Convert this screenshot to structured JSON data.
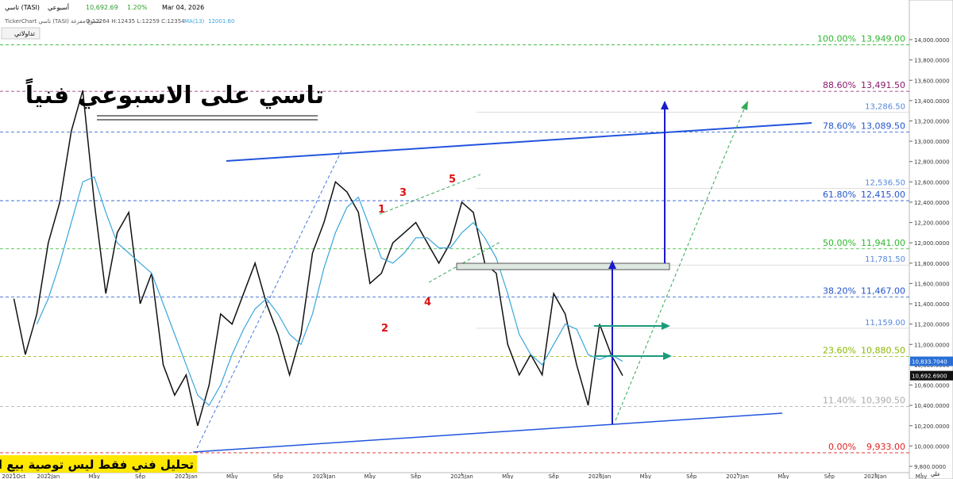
{
  "header": {
    "symbol": "تاسي (TASI)",
    "period": "أسبوعي",
    "last": "10,692.69",
    "change": "1.20%",
    "date": "Mar 04, 2026",
    "source": "TickerChart تاسي (TASI) شموع مفرغة",
    "ohlc": "O:12264 H:12435 L:12259 C:12354",
    "ma": "MA(13)",
    "ma_value": "12001.60",
    "button": "تداولاتي"
  },
  "chart_data": {
    "type": "line",
    "title": "تاسي على الاسبوعي فنياً",
    "footer": "تحليل فني فقط ليس توصية بيع او شراء",
    "signature": "علي",
    "annotations": [
      "1",
      "2",
      "3",
      "4",
      "5"
    ],
    "x": [
      "2021-10",
      "2021-11",
      "2021-12",
      "2022-01",
      "2022-02",
      "2022-03",
      "2022-04",
      "2022-05",
      "2022-06",
      "2022-07",
      "2022-08",
      "2022-09",
      "2022-10",
      "2022-11",
      "2022-12",
      "2023-01",
      "2023-02",
      "2023-03",
      "2023-04",
      "2023-05",
      "2023-06",
      "2023-07",
      "2023-08",
      "2023-09",
      "2023-10",
      "2023-11",
      "2023-12",
      "2024-01",
      "2024-02",
      "2024-03",
      "2024-04",
      "2024-05",
      "2024-06",
      "2024-07",
      "2024-08",
      "2024-09",
      "2024-10",
      "2024-11",
      "2024-12",
      "2025-01",
      "2025-02",
      "2025-03",
      "2025-04",
      "2025-05",
      "2025-06",
      "2025-07",
      "2025-08",
      "2025-09",
      "2025-10",
      "2025-11",
      "2025-12",
      "2026-01",
      "2026-02",
      "2026-03"
    ],
    "series": [
      {
        "name": "تاسي (TASI)",
        "color": "#111111",
        "values": [
          11450,
          10900,
          11300,
          12000,
          12400,
          13100,
          13500,
          12400,
          11500,
          12100,
          12300,
          11400,
          11700,
          10800,
          10500,
          10700,
          10200,
          10600,
          11300,
          11200,
          11500,
          11800,
          11400,
          11100,
          10700,
          11100,
          11900,
          12200,
          12600,
          12500,
          12300,
          11600,
          11700,
          12000,
          12100,
          12200,
          12000,
          11800,
          12000,
          12400,
          12300,
          11800,
          11700,
          11000,
          10700,
          10900,
          10700,
          11500,
          11300,
          10800,
          10400,
          11200,
          10900,
          10693
        ]
      },
      {
        "name": "MA(13)",
        "color": "#3aa6dd",
        "values": [
          null,
          null,
          11200,
          11450,
          11800,
          12200,
          12600,
          12650,
          12300,
          12000,
          11900,
          11800,
          11700,
          11400,
          11100,
          10800,
          10500,
          10400,
          10600,
          10900,
          11150,
          11350,
          11450,
          11300,
          11100,
          11000,
          11300,
          11750,
          12100,
          12350,
          12450,
          12150,
          11850,
          11800,
          11900,
          12050,
          12050,
          11950,
          11950,
          12100,
          12200,
          12050,
          11850,
          11500,
          11100,
          10900,
          10800,
          11000,
          11200,
          11150,
          10900,
          10850,
          10900,
          10833
        ]
      }
    ],
    "xlim": [
      "2021-09",
      "2028-06"
    ],
    "xticks": [
      {
        "value": "2021-10",
        "label": "2021Oct"
      },
      {
        "value": "2022-01",
        "label": "2022Jan"
      },
      {
        "value": "2022-05",
        "label": "May"
      },
      {
        "value": "2022-09",
        "label": "Sep"
      },
      {
        "value": "2023-01",
        "label": "2023Jan"
      },
      {
        "value": "2023-05",
        "label": "May"
      },
      {
        "value": "2023-09",
        "label": "Sep"
      },
      {
        "value": "2024-01",
        "label": "2024Jan"
      },
      {
        "value": "2024-05",
        "label": "May"
      },
      {
        "value": "2024-09",
        "label": "Sep"
      },
      {
        "value": "2025-01",
        "label": "2025Jan"
      },
      {
        "value": "2025-05",
        "label": "May"
      },
      {
        "value": "2025-09",
        "label": "Sep"
      },
      {
        "value": "2026-01",
        "label": "2026Jan"
      },
      {
        "value": "2026-05",
        "label": "May"
      },
      {
        "value": "2026-09",
        "label": "Sep"
      },
      {
        "value": "2027-01",
        "label": "2027Jan"
      },
      {
        "value": "2027-05",
        "label": "May"
      },
      {
        "value": "2027-09",
        "label": "Sep"
      },
      {
        "value": "2028-01",
        "label": "2028Jan"
      },
      {
        "value": "2028-05",
        "label": "May"
      }
    ],
    "ylim": [
      9750,
      14150
    ],
    "yticks": [
      {
        "value": 9800,
        "label": "9,800.0000"
      },
      {
        "value": 10000,
        "label": "10,000.0000"
      },
      {
        "value": 10200,
        "label": "10,200.0000"
      },
      {
        "value": 10400,
        "label": "10,400.0000"
      },
      {
        "value": 10600,
        "label": "10,600.0000"
      },
      {
        "value": 10800,
        "label": "10,800.0000"
      },
      {
        "value": 11000,
        "label": "11,000.0000"
      },
      {
        "value": 11200,
        "label": "11,200.0000"
      },
      {
        "value": 11400,
        "label": "11,400.0000"
      },
      {
        "value": 11600,
        "label": "11,600.0000"
      },
      {
        "value": 11800,
        "label": "11,800.0000"
      },
      {
        "value": 12000,
        "label": "12,000.0000"
      },
      {
        "value": 12200,
        "label": "12,200.0000"
      },
      {
        "value": 12400,
        "label": "12,400.0000"
      },
      {
        "value": 12600,
        "label": "12,600.0000"
      },
      {
        "value": 12800,
        "label": "12,800.0000"
      },
      {
        "value": 13000,
        "label": "13,000.0000"
      },
      {
        "value": 13200,
        "label": "13,200.0000"
      },
      {
        "value": 13400,
        "label": "13,400.0000"
      },
      {
        "value": 13600,
        "label": "13,600.0000"
      },
      {
        "value": 13800,
        "label": "13,800.0000"
      },
      {
        "value": 14000,
        "label": "14,000.0000"
      }
    ],
    "fib_levels": [
      {
        "pct": "100.00%",
        "label": "13,949.00",
        "value": 13949,
        "color": "#2eb82e"
      },
      {
        "pct": "88.60%",
        "label": "13,491.50",
        "value": 13491.5,
        "color": "#8b1a6b"
      },
      {
        "pct": "78.60%",
        "label": "13,089.50",
        "value": 13089.5,
        "color": "#2255cc"
      },
      {
        "pct": "61.80%",
        "label": "12,415.00",
        "value": 12415,
        "color": "#2255cc"
      },
      {
        "pct": "50.00%",
        "label": "11,941.00",
        "value": 11941,
        "color": "#2eb82e"
      },
      {
        "pct": "38.20%",
        "label": "11,467.00",
        "value": 11467,
        "color": "#2255cc"
      },
      {
        "pct": "23.60%",
        "label": "10,880.50",
        "value": 10880.5,
        "color": "#8ab800"
      },
      {
        "pct": "11.40%",
        "label": "10,390.50",
        "value": 10390.5,
        "color": "#aaaaaa"
      },
      {
        "pct": "0.00%",
        "label": "9,933.00",
        "value": 9933,
        "color": "#dd2222"
      }
    ],
    "extra_levels": [
      {
        "value": 13286.5,
        "label": "13,286.50"
      },
      {
        "value": 12536.5,
        "label": "12,536.50"
      },
      {
        "value": 11781.5,
        "label": "11,781.50"
      },
      {
        "value": 11159,
        "label": "11,159.00"
      }
    ],
    "price_tags": [
      {
        "value": 10833.704,
        "label": "10,833.7040",
        "color": "#2a6fd6"
      },
      {
        "value": 10692.69,
        "label": "10,692.6900",
        "color": "#111111"
      }
    ]
  }
}
